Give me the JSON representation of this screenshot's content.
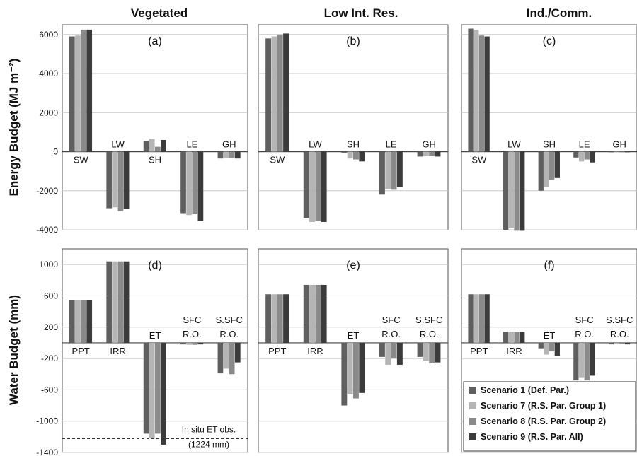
{
  "figure": {
    "column_titles": [
      "Vegetated",
      "Low Int. Res.",
      "Ind./Comm."
    ],
    "row_ylabels": [
      "Energy Budget (MJ m⁻²)",
      "Water Budget (mm)"
    ]
  },
  "colors": {
    "series": [
      "#5f5f5f",
      "#b5b5b5",
      "#8a8a8a",
      "#3b3b3b"
    ],
    "grid": "#c8c8c8",
    "frame": "#555555"
  },
  "chart_data": [
    {
      "type": "bar",
      "panel": "(a)",
      "column": "Vegetated",
      "ylabel": "Energy Budget (MJ m⁻²)",
      "categories": [
        "SW",
        "LW",
        "SH",
        "LE",
        "GH"
      ],
      "ylim": [
        -4000,
        6500
      ],
      "yticks": [
        -4000,
        -2000,
        0,
        2000,
        4000,
        6000
      ],
      "grid": true,
      "series": [
        {
          "name": "Scenario 1 (Def. Par.)",
          "values": [
            5900,
            -2900,
            550,
            -3150,
            -350
          ]
        },
        {
          "name": "Scenario 7 (R.S. Par. Group 1)",
          "values": [
            5950,
            -2850,
            650,
            -3250,
            -330
          ]
        },
        {
          "name": "Scenario 8 (R.S. Par. Group 2)",
          "values": [
            6250,
            -3050,
            250,
            -3200,
            -330
          ]
        },
        {
          "name": "Scenario 9 (R.S. Par. All)",
          "values": [
            6250,
            -2950,
            600,
            -3550,
            -350
          ]
        }
      ]
    },
    {
      "type": "bar",
      "panel": "(b)",
      "column": "Low Int. Res.",
      "ylabel": "",
      "categories": [
        "SW",
        "LW",
        "SH",
        "LE",
        "GH"
      ],
      "ylim": [
        -4000,
        6500
      ],
      "yticks": [
        -4000,
        -2000,
        0,
        2000,
        4000,
        6000
      ],
      "grid": true,
      "series": [
        {
          "name": "Scenario 1 (Def. Par.)",
          "values": [
            5800,
            -3400,
            -50,
            -2200,
            -250
          ]
        },
        {
          "name": "Scenario 7 (R.S. Par. Group 1)",
          "values": [
            5900,
            -3600,
            -350,
            -1900,
            -230
          ]
        },
        {
          "name": "Scenario 8 (R.S. Par. Group 2)",
          "values": [
            6000,
            -3550,
            -400,
            -1950,
            -230
          ]
        },
        {
          "name": "Scenario 9 (R.S. Par. All)",
          "values": [
            6050,
            -3600,
            -500,
            -1800,
            -250
          ]
        }
      ]
    },
    {
      "type": "bar",
      "panel": "(c)",
      "column": "Ind./Comm.",
      "ylabel": "",
      "categories": [
        "SW",
        "LW",
        "SH",
        "LE",
        "GH"
      ],
      "ylim": [
        -4000,
        6500
      ],
      "yticks": [
        -4000,
        -2000,
        0,
        2000,
        4000,
        6000
      ],
      "grid": true,
      "series": [
        {
          "name": "Scenario 1 (Def. Par.)",
          "values": [
            6300,
            -4000,
            -2000,
            -300,
            -30
          ]
        },
        {
          "name": "Scenario 7 (R.S. Par. Group 1)",
          "values": [
            6250,
            -3900,
            -1800,
            -500,
            -30
          ]
        },
        {
          "name": "Scenario 8 (R.S. Par. Group 2)",
          "values": [
            5950,
            -4050,
            -1450,
            -400,
            -30
          ]
        },
        {
          "name": "Scenario 9 (R.S. Par. All)",
          "values": [
            5900,
            -4050,
            -1350,
            -550,
            -30
          ]
        }
      ]
    },
    {
      "type": "bar",
      "panel": "(d)",
      "column": "Vegetated",
      "ylabel": "Water Budget (mm)",
      "categories": [
        "PPT",
        "IRR",
        "ET",
        "SFC R.O.",
        "S.SFC R.O."
      ],
      "ylim": [
        -1400,
        1200
      ],
      "yticks": [
        -1400,
        -1000,
        -600,
        -200,
        200,
        600,
        1000
      ],
      "grid": true,
      "reference_line": {
        "value": -1224,
        "label_line1": "In situ ET obs.",
        "label_line2": "(1224 mm)"
      },
      "series": [
        {
          "name": "Scenario 1 (Def. Par.)",
          "values": [
            550,
            1040,
            -1160,
            -20,
            -390
          ]
        },
        {
          "name": "Scenario 7 (R.S. Par. Group 1)",
          "values": [
            550,
            1040,
            -1220,
            -25,
            -330
          ]
        },
        {
          "name": "Scenario 8 (R.S. Par. Group 2)",
          "values": [
            550,
            1040,
            -1160,
            -25,
            -400
          ]
        },
        {
          "name": "Scenario 9 (R.S. Par. All)",
          "values": [
            550,
            1040,
            -1300,
            -20,
            -250
          ]
        }
      ]
    },
    {
      "type": "bar",
      "panel": "(e)",
      "column": "Low Int. Res.",
      "ylabel": "",
      "categories": [
        "PPT",
        "IRR",
        "ET",
        "SFC R.O.",
        "S.SFC R.O."
      ],
      "ylim": [
        -1400,
        1200
      ],
      "yticks": [
        -1400,
        -1000,
        -600,
        -200,
        200,
        600,
        1000
      ],
      "grid": true,
      "series": [
        {
          "name": "Scenario 1 (Def. Par.)",
          "values": [
            620,
            740,
            -800,
            -180,
            -180
          ]
        },
        {
          "name": "Scenario 7 (R.S. Par. Group 1)",
          "values": [
            620,
            740,
            -660,
            -280,
            -230
          ]
        },
        {
          "name": "Scenario 8 (R.S. Par. Group 2)",
          "values": [
            620,
            740,
            -710,
            -200,
            -260
          ]
        },
        {
          "name": "Scenario 9 (R.S. Par. All)",
          "values": [
            620,
            740,
            -640,
            -280,
            -250
          ]
        }
      ]
    },
    {
      "type": "bar",
      "panel": "(f)",
      "column": "Ind./Comm.",
      "ylabel": "",
      "categories": [
        "PPT",
        "IRR",
        "ET",
        "SFC R.O.",
        "S.SFC R.O."
      ],
      "ylim": [
        -1400,
        1200
      ],
      "yticks": [
        -1400,
        -1000,
        -600,
        -200,
        200,
        600,
        1000
      ],
      "grid": true,
      "series": [
        {
          "name": "Scenario 1 (Def. Par.)",
          "values": [
            620,
            140,
            -70,
            -480,
            -20
          ]
        },
        {
          "name": "Scenario 7 (R.S. Par. Group 1)",
          "values": [
            620,
            140,
            -150,
            -440,
            -15
          ]
        },
        {
          "name": "Scenario 8 (R.S. Par. Group 2)",
          "values": [
            620,
            140,
            -110,
            -480,
            -15
          ]
        },
        {
          "name": "Scenario 9 (R.S. Par. All)",
          "values": [
            620,
            140,
            -170,
            -420,
            -20
          ]
        }
      ]
    }
  ],
  "legend": {
    "placement": "bottom-right",
    "entries": [
      "Scenario 1 (Def. Par.)",
      "Scenario 7 (R.S. Par. Group 1)",
      "Scenario 8 (R.S. Par. Group 2)",
      "Scenario 9 (R.S. Par. All)"
    ]
  }
}
